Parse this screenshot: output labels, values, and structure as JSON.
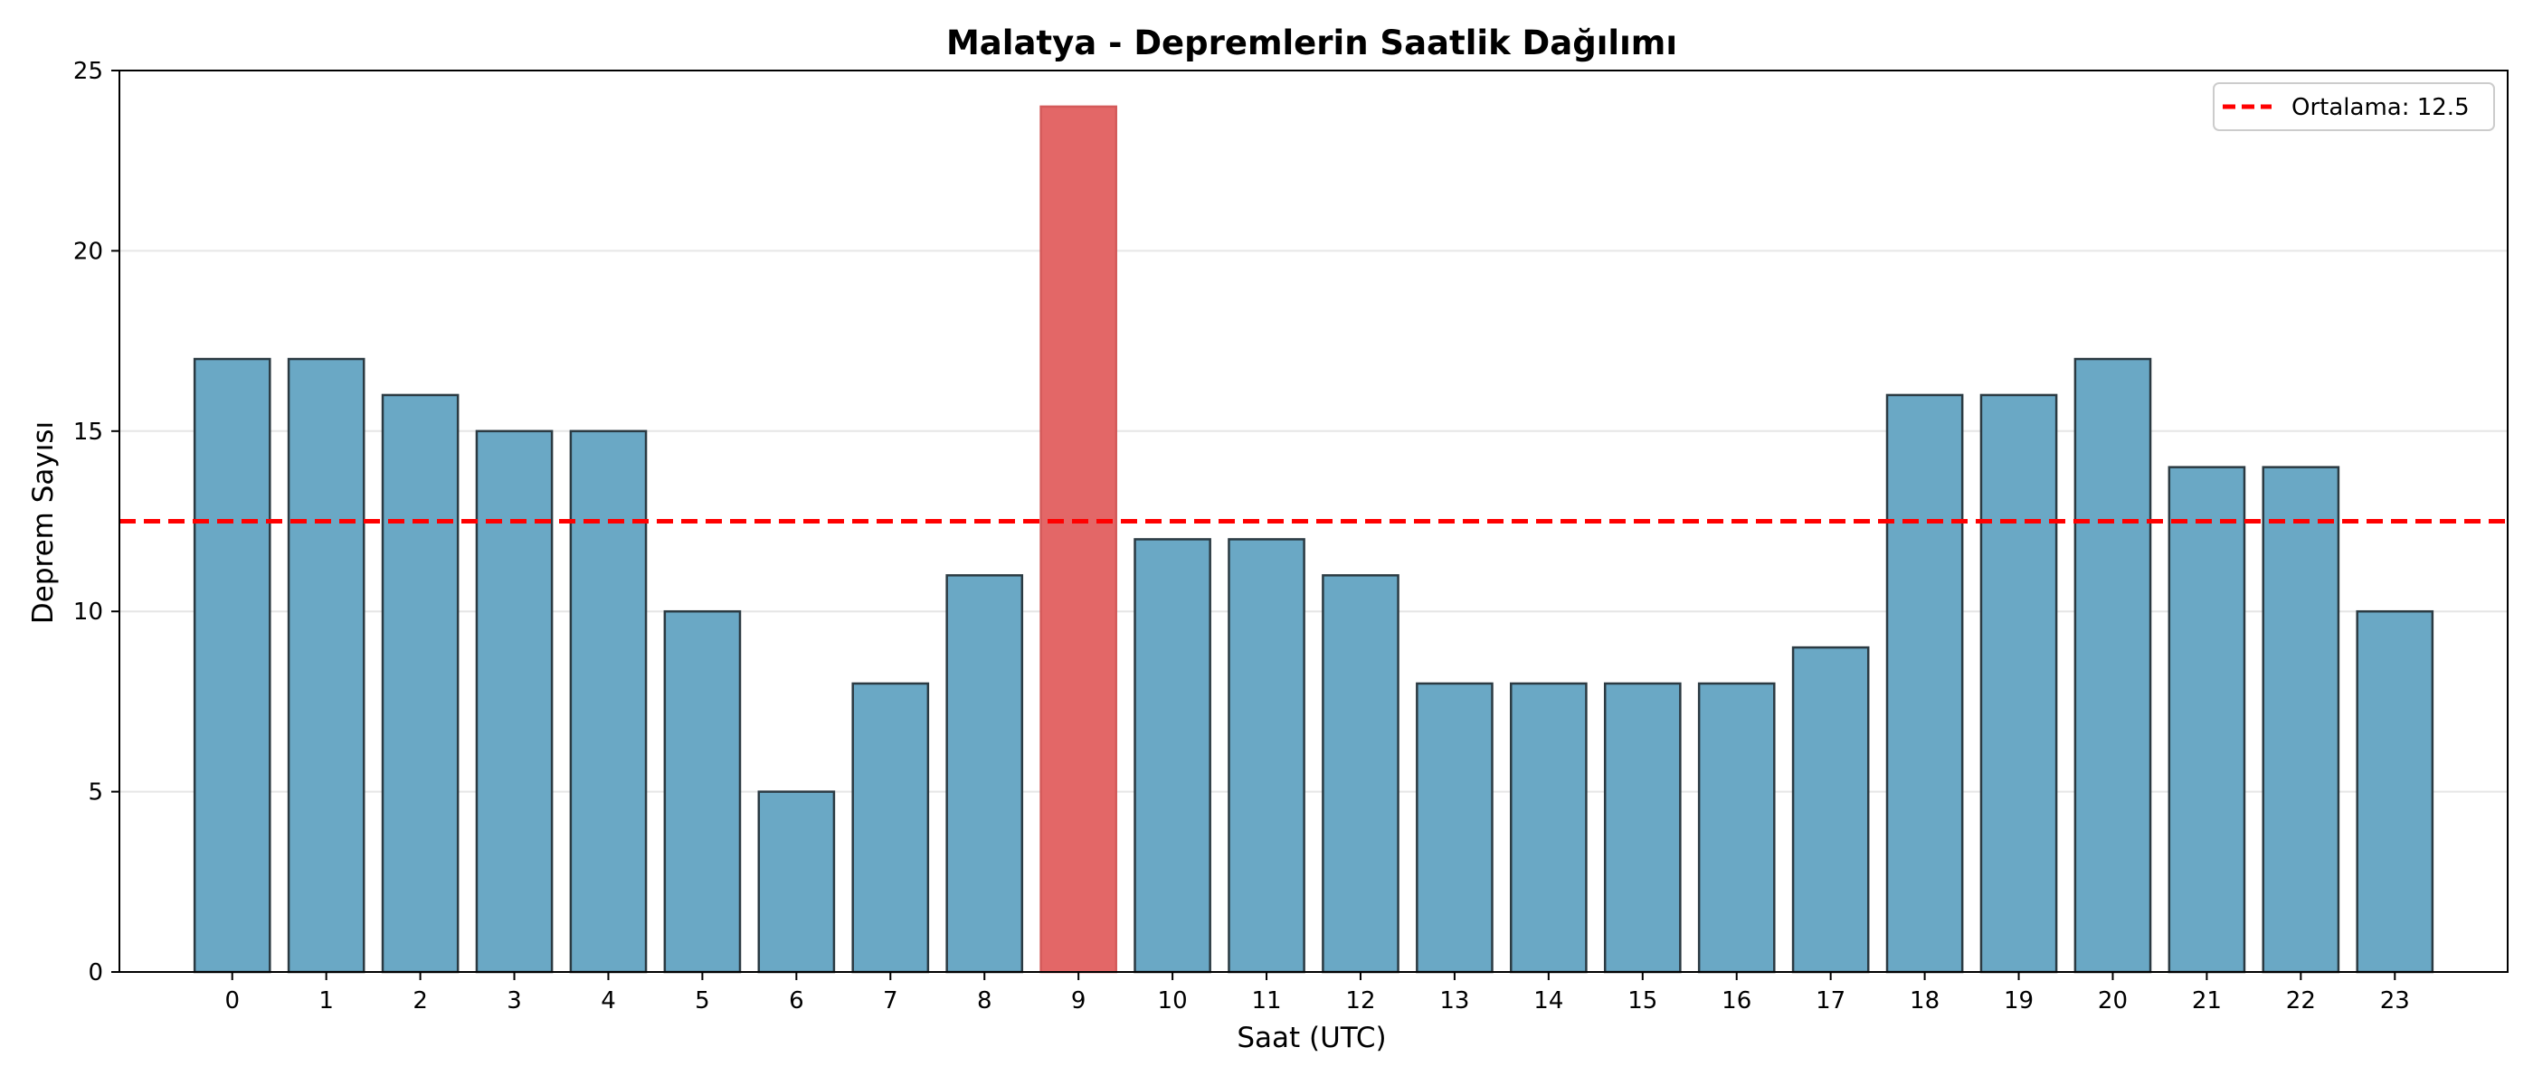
{
  "chart_data": {
    "type": "bar",
    "title": "Malatya - Depremlerin Saatlik Dağılımı",
    "xlabel": "Saat (UTC)",
    "ylabel": "Deprem Sayısı",
    "categories": [
      "0",
      "1",
      "2",
      "3",
      "4",
      "5",
      "6",
      "7",
      "8",
      "9",
      "10",
      "11",
      "12",
      "13",
      "14",
      "15",
      "16",
      "17",
      "18",
      "19",
      "20",
      "21",
      "22",
      "23"
    ],
    "values": [
      17,
      17,
      16,
      15,
      15,
      10,
      5,
      8,
      11,
      24,
      12,
      12,
      11,
      8,
      8,
      8,
      8,
      9,
      16,
      16,
      17,
      14,
      14,
      10
    ],
    "highlight_index": 9,
    "ylim": [
      0,
      25
    ],
    "yticks": [
      0,
      5,
      10,
      15,
      20,
      25
    ],
    "grid": "y",
    "reference_line": {
      "value": 12.5,
      "label": "Ortalama: 12.5",
      "color": "#ff0000",
      "style": "dashed"
    },
    "legend_position": "top-right",
    "colors": {
      "bar": "#6aa8c5",
      "highlight": "#e36767",
      "bar_edge": "#2b3a42",
      "grid": "#e6e6e6"
    }
  }
}
